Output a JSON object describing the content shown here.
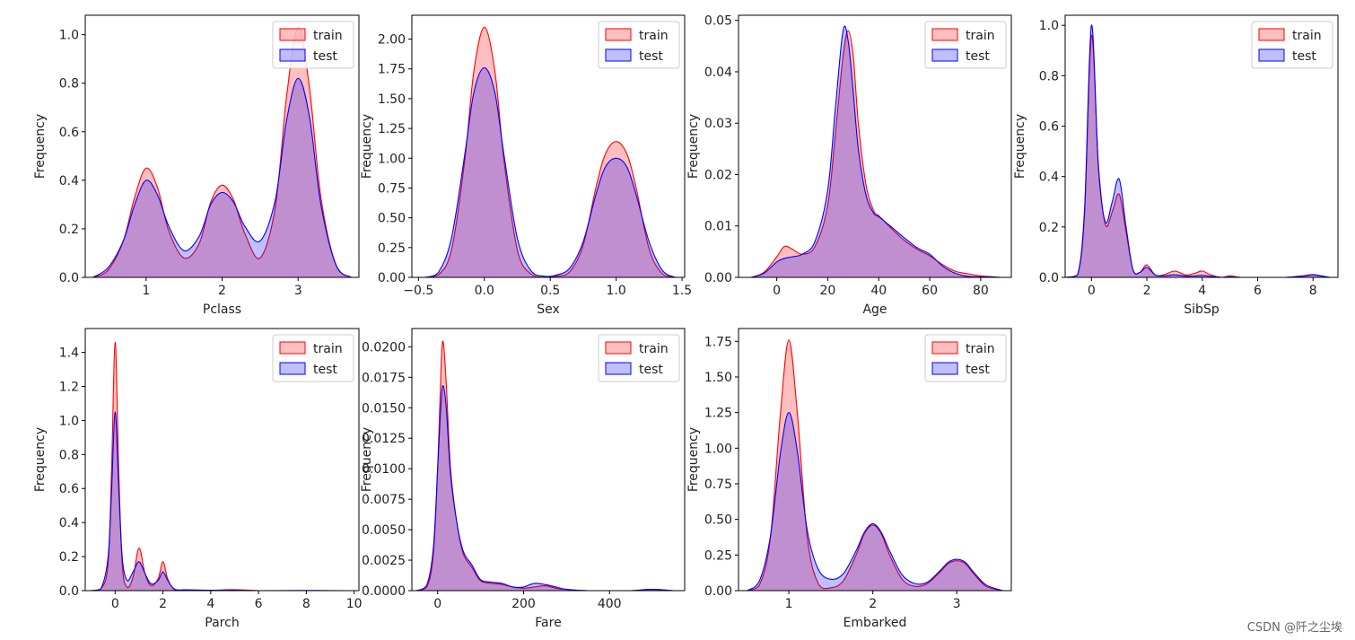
{
  "colors": {
    "train": "#ff0000",
    "test": "#0000ff"
  },
  "watermark": "CSDN @阡之尘埃",
  "chart_data": [
    {
      "type": "area",
      "xlabel": "Pclass",
      "ylabel": "Frequency",
      "xlim": [
        0.2,
        3.8
      ],
      "ylim": [
        0,
        1.08
      ],
      "xticks": [
        1,
        2,
        3
      ],
      "xtick_labels": [
        "1",
        "2",
        "3"
      ],
      "yticks": [
        0,
        0.2,
        0.4,
        0.6,
        0.8,
        1.0
      ],
      "ytick_labels": [
        "0.0",
        "0.2",
        "0.4",
        "0.6",
        "0.8",
        "1.0"
      ],
      "legend_position": "top-right",
      "series": [
        {
          "name": "train",
          "x": [
            0.3,
            0.5,
            0.7,
            0.85,
            1.0,
            1.15,
            1.3,
            1.5,
            1.7,
            1.85,
            2.0,
            2.15,
            2.3,
            2.5,
            2.7,
            2.85,
            3.0,
            3.15,
            3.3,
            3.5,
            3.7
          ],
          "y": [
            0.0,
            0.03,
            0.15,
            0.33,
            0.45,
            0.37,
            0.19,
            0.08,
            0.14,
            0.31,
            0.38,
            0.32,
            0.18,
            0.08,
            0.29,
            0.75,
            1.03,
            0.78,
            0.33,
            0.05,
            0.0
          ]
        },
        {
          "name": "test",
          "x": [
            0.3,
            0.5,
            0.7,
            0.85,
            1.0,
            1.15,
            1.3,
            1.5,
            1.7,
            1.85,
            2.0,
            2.15,
            2.3,
            2.5,
            2.7,
            2.85,
            3.0,
            3.15,
            3.3,
            3.5,
            3.7
          ],
          "y": [
            0.0,
            0.04,
            0.15,
            0.3,
            0.4,
            0.34,
            0.21,
            0.11,
            0.17,
            0.3,
            0.35,
            0.31,
            0.21,
            0.15,
            0.32,
            0.65,
            0.82,
            0.66,
            0.3,
            0.05,
            0.0
          ]
        }
      ]
    },
    {
      "type": "area",
      "xlabel": "Sex",
      "ylabel": "Frequency",
      "xlim": [
        -0.55,
        1.52
      ],
      "ylim": [
        0,
        2.2
      ],
      "xticks": [
        -0.5,
        0,
        0.5,
        1.0,
        1.5
      ],
      "xtick_labels": [
        "−0.5",
        "0.0",
        "0.5",
        "1.0",
        "1.5"
      ],
      "yticks": [
        0,
        0.25,
        0.5,
        0.75,
        1.0,
        1.25,
        1.5,
        1.75,
        2.0
      ],
      "ytick_labels": [
        "0.00",
        "0.25",
        "0.50",
        "0.75",
        "1.00",
        "1.25",
        "1.50",
        "1.75",
        "2.00"
      ],
      "legend_position": "top-right",
      "series": [
        {
          "name": "train",
          "x": [
            -0.45,
            -0.35,
            -0.25,
            -0.15,
            -0.08,
            0.0,
            0.08,
            0.15,
            0.25,
            0.35,
            0.45,
            0.55,
            0.65,
            0.75,
            0.85,
            0.92,
            1.0,
            1.08,
            1.15,
            1.25,
            1.35,
            1.45
          ],
          "y": [
            0.0,
            0.02,
            0.23,
            0.97,
            1.73,
            2.1,
            1.73,
            0.97,
            0.23,
            0.03,
            0.0,
            0.01,
            0.05,
            0.27,
            0.77,
            1.04,
            1.14,
            1.04,
            0.76,
            0.24,
            0.03,
            0.0
          ]
        },
        {
          "name": "test",
          "x": [
            -0.45,
            -0.35,
            -0.25,
            -0.15,
            -0.08,
            0.0,
            0.08,
            0.15,
            0.25,
            0.35,
            0.45,
            0.55,
            0.65,
            0.75,
            0.85,
            0.92,
            1.0,
            1.08,
            1.15,
            1.25,
            1.35,
            1.45
          ],
          "y": [
            0.0,
            0.04,
            0.33,
            1.02,
            1.55,
            1.76,
            1.55,
            1.02,
            0.33,
            0.06,
            0.01,
            0.02,
            0.08,
            0.3,
            0.71,
            0.93,
            1.0,
            0.93,
            0.7,
            0.3,
            0.06,
            0.0
          ]
        }
      ]
    },
    {
      "type": "area",
      "xlabel": "Age",
      "ylabel": "Frequency",
      "xlim": [
        -15,
        92
      ],
      "ylim": [
        0,
        0.051
      ],
      "xticks": [
        0,
        20,
        40,
        60,
        80
      ],
      "xtick_labels": [
        "0",
        "20",
        "40",
        "60",
        "80"
      ],
      "yticks": [
        0,
        0.01,
        0.02,
        0.03,
        0.04,
        0.05
      ],
      "ytick_labels": [
        "0.00",
        "0.01",
        "0.02",
        "0.03",
        "0.04",
        "0.05"
      ],
      "legend_position": "top-right",
      "series": [
        {
          "name": "train",
          "x": [
            -10,
            -5,
            0,
            3,
            6,
            10,
            15,
            20,
            23,
            26,
            28,
            30,
            32,
            35,
            38,
            40,
            45,
            50,
            55,
            60,
            65,
            70,
            75,
            80,
            88
          ],
          "y": [
            0.0,
            0.001,
            0.004,
            0.006,
            0.0055,
            0.0045,
            0.006,
            0.014,
            0.028,
            0.043,
            0.048,
            0.043,
            0.03,
            0.018,
            0.013,
            0.012,
            0.0095,
            0.0072,
            0.0055,
            0.0042,
            0.0025,
            0.0012,
            0.0007,
            0.0003,
            0.0
          ]
        },
        {
          "name": "test",
          "x": [
            -10,
            -5,
            0,
            3,
            6,
            10,
            15,
            20,
            23,
            26,
            28,
            30,
            32,
            35,
            38,
            40,
            45,
            50,
            55,
            60,
            65,
            70,
            75,
            80,
            88
          ],
          "y": [
            0.0,
            0.0008,
            0.003,
            0.0037,
            0.004,
            0.0045,
            0.007,
            0.017,
            0.033,
            0.048,
            0.046,
            0.036,
            0.025,
            0.016,
            0.0125,
            0.0118,
            0.0098,
            0.0077,
            0.0058,
            0.0045,
            0.0022,
            0.0008,
            0.0002,
            0.0001,
            0.0
          ]
        }
      ]
    },
    {
      "type": "area",
      "xlabel": "SibSp",
      "ylabel": "Frequency",
      "xlim": [
        -0.95,
        8.9
      ],
      "ylim": [
        0,
        1.04
      ],
      "xticks": [
        0,
        2,
        4,
        6,
        8
      ],
      "xtick_labels": [
        "0",
        "2",
        "4",
        "6",
        "8"
      ],
      "yticks": [
        0,
        0.2,
        0.4,
        0.6,
        0.8,
        1.0
      ],
      "ytick_labels": [
        "0.0",
        "0.2",
        "0.4",
        "0.6",
        "0.8",
        "1.0"
      ],
      "legend_position": "top-right",
      "series": [
        {
          "name": "train",
          "x": [
            -0.9,
            -0.5,
            -0.25,
            0.0,
            0.25,
            0.5,
            0.75,
            1.0,
            1.25,
            1.5,
            1.75,
            2.0,
            2.3,
            2.6,
            3.0,
            3.4,
            3.7,
            4.0,
            4.3,
            4.7,
            5.0,
            5.4,
            6.0,
            7.0,
            7.7,
            8.0,
            8.3,
            8.6
          ],
          "y": [
            0.0,
            0.01,
            0.25,
            0.96,
            0.45,
            0.21,
            0.26,
            0.33,
            0.18,
            0.03,
            0.02,
            0.05,
            0.01,
            0.01,
            0.025,
            0.01,
            0.015,
            0.025,
            0.01,
            0.0,
            0.006,
            0.0,
            0.0,
            0.0,
            0.005,
            0.01,
            0.005,
            0.0
          ]
        },
        {
          "name": "test",
          "x": [
            -0.9,
            -0.5,
            -0.25,
            0.0,
            0.25,
            0.5,
            0.75,
            1.0,
            1.25,
            1.5,
            1.75,
            2.0,
            2.3,
            2.6,
            3.0,
            3.4,
            3.7,
            4.0,
            4.3,
            4.7,
            5.0,
            5.4,
            6.0,
            7.0,
            7.7,
            8.0,
            8.3,
            8.6
          ],
          "y": [
            0.0,
            0.01,
            0.27,
            1.0,
            0.44,
            0.22,
            0.3,
            0.39,
            0.2,
            0.03,
            0.02,
            0.04,
            0.01,
            0.006,
            0.01,
            0.005,
            0.005,
            0.008,
            0.004,
            0.0,
            0.002,
            0.0,
            0.0,
            0.0,
            0.007,
            0.011,
            0.006,
            0.0
          ]
        }
      ]
    },
    {
      "type": "area",
      "xlabel": "Parch",
      "ylabel": "Frequency",
      "xlim": [
        -1.25,
        10.2
      ],
      "ylim": [
        0,
        1.54
      ],
      "xticks": [
        0,
        2,
        4,
        6,
        8,
        10
      ],
      "xtick_labels": [
        "0",
        "2",
        "4",
        "6",
        "8",
        "10"
      ],
      "yticks": [
        0,
        0.2,
        0.4,
        0.6,
        0.8,
        1.0,
        1.2,
        1.4
      ],
      "ytick_labels": [
        "0.0",
        "0.2",
        "0.4",
        "0.6",
        "0.8",
        "1.0",
        "1.2",
        "1.4"
      ],
      "legend_position": "top-right",
      "series": [
        {
          "name": "train",
          "x": [
            -1.0,
            -0.6,
            -0.3,
            -0.15,
            0.0,
            0.15,
            0.3,
            0.5,
            0.75,
            1.0,
            1.25,
            1.5,
            1.8,
            2.0,
            2.2,
            2.5,
            3.0,
            4.0,
            5.0,
            6.0,
            8.0,
            9.5
          ],
          "y": [
            0.0,
            0.01,
            0.15,
            0.7,
            1.46,
            0.71,
            0.15,
            0.02,
            0.08,
            0.25,
            0.1,
            0.03,
            0.07,
            0.17,
            0.07,
            0.005,
            0.003,
            0.002,
            0.006,
            0.0,
            0.0,
            0.0
          ]
        },
        {
          "name": "test",
          "x": [
            -1.0,
            -0.6,
            -0.3,
            -0.15,
            0.0,
            0.15,
            0.3,
            0.5,
            0.75,
            1.0,
            1.25,
            1.5,
            1.8,
            2.0,
            2.2,
            2.5,
            3.0,
            4.0,
            5.0,
            6.0,
            8.0,
            9.5
          ],
          "y": [
            0.0,
            0.01,
            0.19,
            0.58,
            1.05,
            0.6,
            0.19,
            0.06,
            0.11,
            0.17,
            0.1,
            0.04,
            0.06,
            0.11,
            0.06,
            0.008,
            0.005,
            0.002,
            0.002,
            0.0,
            0.001,
            0.0
          ]
        }
      ]
    },
    {
      "type": "area",
      "xlabel": "Fare",
      "ylabel": "Frequency",
      "xlim": [
        -60,
        575
      ],
      "ylim": [
        0,
        0.0215
      ],
      "xticks": [
        0,
        200,
        400
      ],
      "xtick_labels": [
        "0",
        "200",
        "400"
      ],
      "yticks": [
        0,
        0.0025,
        0.005,
        0.0075,
        0.01,
        0.0125,
        0.015,
        0.0175,
        0.02
      ],
      "ytick_labels": [
        "0.0000",
        "0.0025",
        "0.0050",
        "0.0075",
        "0.0100",
        "0.0125",
        "0.0150",
        "0.0175",
        "0.0200"
      ],
      "legend_position": "top-right",
      "series": [
        {
          "name": "train",
          "x": [
            -50,
            -25,
            -10,
            0,
            8,
            13,
            20,
            30,
            45,
            60,
            80,
            100,
            125,
            150,
            175,
            200,
            225,
            250,
            275,
            300,
            350,
            400,
            450,
            500,
            550
          ],
          "y": [
            0.0,
            0.0003,
            0.003,
            0.01,
            0.0185,
            0.0204,
            0.017,
            0.01,
            0.0055,
            0.003,
            0.0019,
            0.0008,
            0.0006,
            0.0005,
            0.0003,
            0.0002,
            0.0003,
            0.0004,
            0.0002,
            0.0001,
            0.0,
            0.0,
            0.0,
            0.0001,
            0.0
          ]
        },
        {
          "name": "test",
          "x": [
            -50,
            -25,
            -10,
            0,
            8,
            13,
            20,
            30,
            45,
            60,
            80,
            100,
            125,
            150,
            175,
            200,
            225,
            250,
            275,
            300,
            350,
            400,
            450,
            500,
            550
          ],
          "y": [
            0.0,
            0.0005,
            0.0035,
            0.01,
            0.0155,
            0.0168,
            0.015,
            0.0095,
            0.0055,
            0.0032,
            0.0021,
            0.0009,
            0.0007,
            0.0006,
            0.0003,
            0.0003,
            0.0006,
            0.0005,
            0.0003,
            0.0001,
            0.0,
            0.0,
            0.0,
            0.0001,
            0.0
          ]
        }
      ]
    },
    {
      "type": "area",
      "xlabel": "Embarked",
      "ylabel": "Frequency",
      "xlim": [
        0.4,
        3.65
      ],
      "ylim": [
        0,
        1.84
      ],
      "xticks": [
        1,
        2,
        3
      ],
      "xtick_labels": [
        "1",
        "2",
        "3"
      ],
      "yticks": [
        0,
        0.25,
        0.5,
        0.75,
        1.0,
        1.25,
        1.5,
        1.75
      ],
      "ytick_labels": [
        "0.00",
        "0.25",
        "0.50",
        "0.75",
        "1.00",
        "1.25",
        "1.50",
        "1.75"
      ],
      "legend_position": "top-right",
      "series": [
        {
          "name": "train",
          "x": [
            0.5,
            0.65,
            0.78,
            0.9,
            1.0,
            1.1,
            1.22,
            1.35,
            1.5,
            1.65,
            1.8,
            1.9,
            2.0,
            2.1,
            2.2,
            2.35,
            2.5,
            2.65,
            2.8,
            2.9,
            3.0,
            3.1,
            3.2,
            3.35,
            3.55
          ],
          "y": [
            0.0,
            0.04,
            0.37,
            1.25,
            1.76,
            1.25,
            0.37,
            0.05,
            0.02,
            0.07,
            0.25,
            0.4,
            0.46,
            0.4,
            0.25,
            0.08,
            0.03,
            0.05,
            0.13,
            0.19,
            0.21,
            0.19,
            0.12,
            0.03,
            0.0
          ]
        },
        {
          "name": "test",
          "x": [
            0.5,
            0.65,
            0.78,
            0.9,
            1.0,
            1.1,
            1.22,
            1.35,
            1.5,
            1.65,
            1.8,
            1.9,
            2.0,
            2.1,
            2.2,
            2.35,
            2.5,
            2.65,
            2.8,
            2.9,
            3.0,
            3.1,
            3.2,
            3.35,
            3.55
          ],
          "y": [
            0.0,
            0.07,
            0.38,
            0.97,
            1.25,
            0.98,
            0.42,
            0.15,
            0.08,
            0.12,
            0.28,
            0.41,
            0.47,
            0.41,
            0.28,
            0.11,
            0.05,
            0.06,
            0.14,
            0.2,
            0.22,
            0.2,
            0.13,
            0.04,
            0.0
          ]
        }
      ]
    }
  ]
}
